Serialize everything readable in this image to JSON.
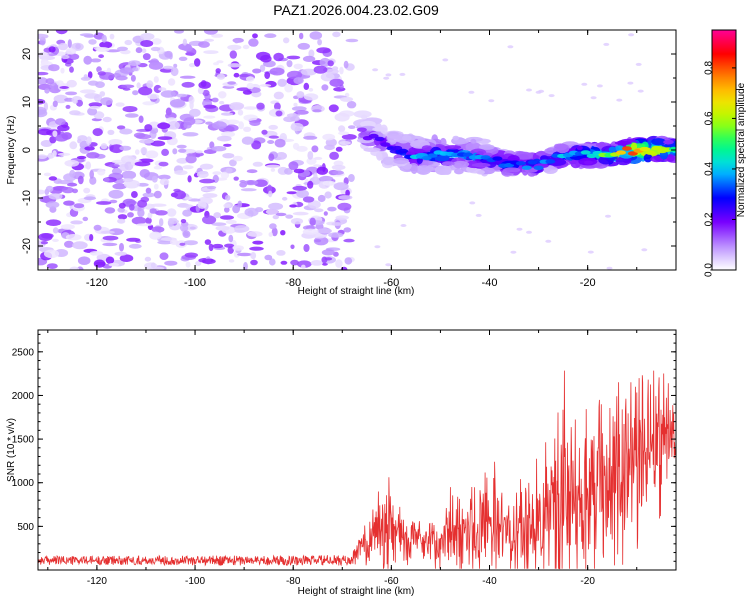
{
  "title": "PAZ1.2026.004.23.02.G09",
  "colors": {
    "snr_line": "#e53030",
    "axis": "#000000",
    "background": "#ffffff"
  },
  "chart_data": [
    {
      "type": "heatmap",
      "name": "spectrogram",
      "xlabel": "Height of straight line (km)",
      "ylabel": "Frequency (Hz)",
      "xlim": [
        -132,
        -2
      ],
      "ylim": [
        -25,
        25
      ],
      "xticks": [
        -120,
        -100,
        -80,
        -60,
        -40,
        -20
      ],
      "yticks": [
        -20,
        -10,
        0,
        10,
        20
      ],
      "xtick_labels": [
        "-120",
        "-100",
        "-80",
        "-60",
        "-40",
        "-20"
      ],
      "ytick_labels": [
        "-20",
        "-10",
        "0",
        "10",
        "20"
      ],
      "colorbar": {
        "label": "Normalized spectral amplitude",
        "range": [
          0.0,
          0.95
        ],
        "ticks": [
          0.0,
          0.2,
          0.4,
          0.6,
          0.8
        ],
        "tick_labels": [
          "0.0",
          "0.2",
          "0.4",
          "0.6",
          "0.8"
        ],
        "colormap": [
          "#ffffff",
          "#b080ff",
          "#6a00ff",
          "#0000ff",
          "#00ccff",
          "#00ff66",
          "#ffff00",
          "#ff8800",
          "#ff0000",
          "#ff0090"
        ]
      },
      "noise_region": {
        "x_range": [
          -132,
          -68
        ],
        "f_range": [
          -25,
          25
        ],
        "amplitude": 0.15
      },
      "signal_ridge": {
        "x": [
          -66,
          -60,
          -55,
          -50,
          -45,
          -40,
          -35,
          -30,
          -25,
          -20,
          -15,
          -10,
          -5,
          -2
        ],
        "f": [
          4,
          0,
          -1,
          -1,
          -1,
          -2,
          -3,
          -3,
          -1,
          -1,
          -1,
          0,
          0,
          0
        ],
        "amplitude": [
          0.2,
          0.28,
          0.4,
          0.45,
          0.4,
          0.35,
          0.33,
          0.38,
          0.4,
          0.45,
          0.65,
          0.9,
          0.7,
          0.5
        ]
      }
    },
    {
      "type": "line",
      "name": "snr",
      "xlabel": "Height of straight line (km)",
      "ylabel": "SNR (10 * v/v)",
      "xlim": [
        -132,
        -2
      ],
      "ylim": [
        0,
        2750
      ],
      "xticks": [
        -120,
        -100,
        -80,
        -60,
        -40,
        -20
      ],
      "yticks": [
        500,
        1000,
        1500,
        2000,
        2500
      ],
      "xtick_labels": [
        "-120",
        "-100",
        "-80",
        "-60",
        "-40",
        "-20"
      ],
      "ytick_labels": [
        "500",
        "1000",
        "1500",
        "2000",
        "2500"
      ],
      "envelope": {
        "x": [
          -132,
          -68,
          -66,
          -62,
          -60,
          -56,
          -52,
          -48,
          -44,
          -40,
          -36,
          -32,
          -28,
          -25,
          -22,
          -20,
          -16,
          -12,
          -8,
          -4,
          -2
        ],
        "base": [
          110,
          110,
          300,
          550,
          500,
          350,
          300,
          400,
          500,
          550,
          400,
          500,
          650,
          900,
          800,
          900,
          1100,
          1200,
          1400,
          1600,
          1300
        ],
        "amp": [
          50,
          60,
          250,
          700,
          600,
          250,
          300,
          500,
          600,
          750,
          550,
          700,
          900,
          1500,
          1000,
          1200,
          1000,
          1200,
          1200,
          800,
          400
        ]
      }
    }
  ]
}
